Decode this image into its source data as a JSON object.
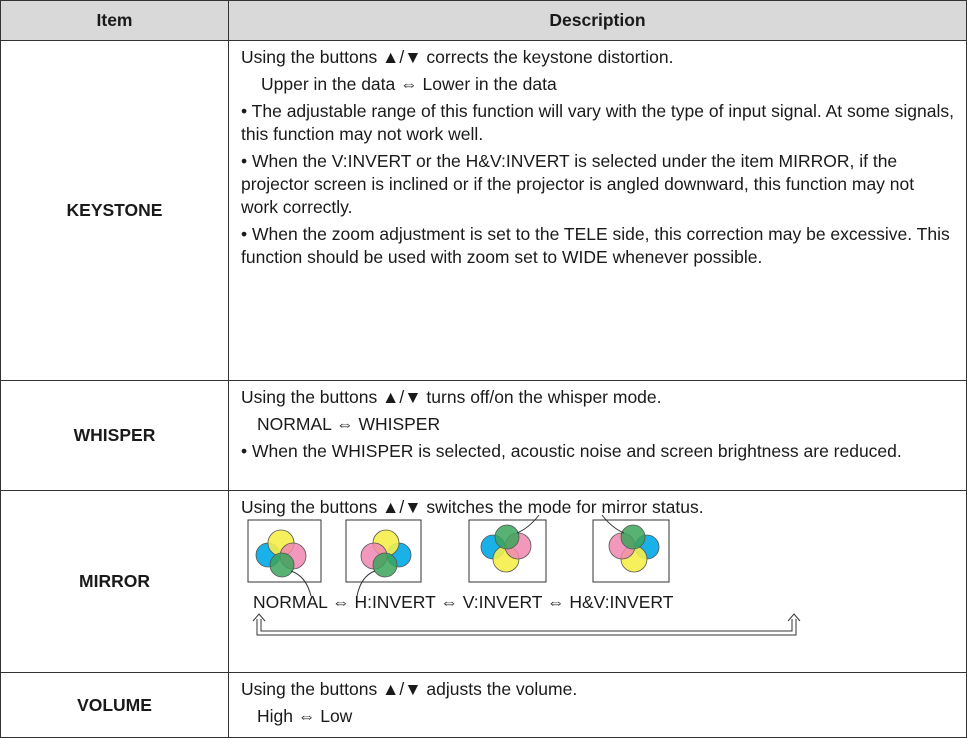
{
  "header": {
    "item": "Item",
    "description": "Description"
  },
  "rows": [
    {
      "item": "KEYSTONE",
      "description": [
        "Using the buttons ▲/▼ corrects the keystone distortion.",
        "Upper in the data ⇔ Lower in the data",
        "• The adjustable range of this function will vary with the type of input signal. At some signals, this function may not work well.",
        "• When the V:INVERT or the H&V:INVERT is selected under the item MIRROR, if the projector screen is inclined or if the projector is angled downward, this function may not work correctly.",
        "• When the zoom adjustment is set to the TELE side, this correction may be excessive. This function should be used with zoom set to WIDE whenever possible."
      ]
    },
    {
      "item": "WHISPER",
      "description": [
        "Using the buttons ▲/▼ turns off/on the whisper mode.",
        "NORMAL ⇔ WHISPER",
        "• When the WHISPER is selected, acoustic noise and screen brightness are reduced."
      ]
    },
    {
      "item": "MIRROR",
      "description": [
        "Using the buttons ▲/▼ switches the mode for mirror status.",
        "NORMAL ⇔ H:INVERT ⇔ V:INVERT ⇔ H&V:INVERT"
      ]
    },
    {
      "item": "VOLUME",
      "description": [
        "Using the buttons ▲/▼ adjusts the volume.",
        "High ⇔ Low"
      ]
    }
  ]
}
